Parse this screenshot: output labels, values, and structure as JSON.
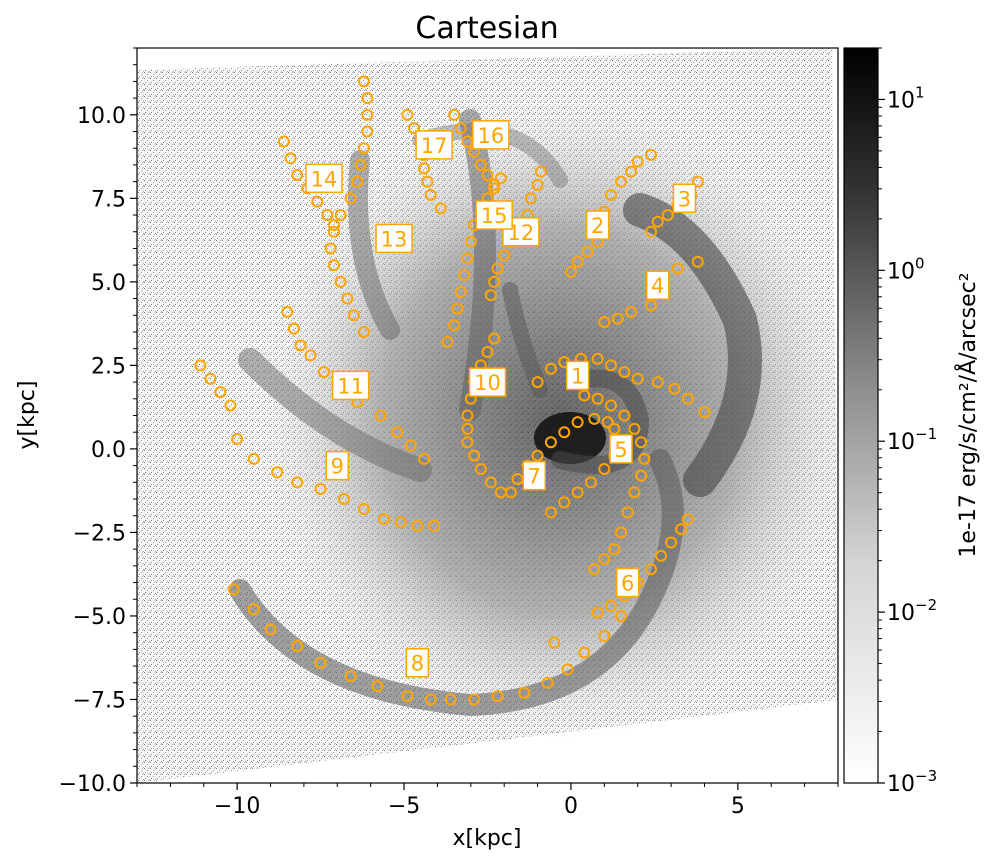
{
  "chart_data": {
    "type": "scatter",
    "title": "Cartesian",
    "xlabel": "x[kpc]",
    "ylabel": "y[kpc]",
    "xlim": [
      -13,
      8
    ],
    "ylim": [
      -10,
      12
    ],
    "xticks": [
      -10,
      -5,
      0,
      5
    ],
    "xtick_labels": [
      "−10",
      "−5",
      "0",
      "5"
    ],
    "yticks": [
      -10,
      -7.5,
      -5,
      -2.5,
      0,
      2.5,
      5,
      7.5,
      10
    ],
    "ytick_labels": [
      "−10.0",
      "−7.5",
      "−5.0",
      "−2.5",
      "0.0",
      "2.5",
      "5.0",
      "7.5",
      "10.0"
    ],
    "background": "grayscale galaxy image (log-scaled emission map)",
    "marker_color": "#FFA500",
    "colorbar": {
      "label": "1e-17 erg/s/cm²/Å/arcsec²",
      "scale": "log",
      "range": [
        0.001,
        20
      ],
      "cmap": "white-to-black",
      "ticks": [
        {
          "value": 0.001,
          "base": "10",
          "exp": "−3"
        },
        {
          "value": 0.01,
          "base": "10",
          "exp": "−2"
        },
        {
          "value": 0.1,
          "base": "10",
          "exp": "−1"
        },
        {
          "value": 1,
          "base": "10",
          "exp": "0"
        },
        {
          "value": 10,
          "base": "10",
          "exp": "1"
        }
      ]
    },
    "series": [
      {
        "id": "1",
        "label_pos": [
          0.2,
          2.2
        ],
        "points": [
          [
            -1.0,
            2.0
          ],
          [
            -0.6,
            2.4
          ],
          [
            -0.2,
            2.6
          ],
          [
            0.3,
            2.7
          ],
          [
            0.8,
            2.7
          ],
          [
            1.2,
            2.5
          ],
          [
            1.6,
            2.3
          ],
          [
            2.0,
            2.1
          ],
          [
            2.6,
            2.0
          ],
          [
            3.1,
            1.8
          ],
          [
            3.5,
            1.5
          ],
          [
            4.0,
            1.1
          ]
        ]
      },
      {
        "id": "2",
        "label_pos": [
          0.8,
          6.7
        ],
        "points": [
          [
            0.0,
            5.3
          ],
          [
            0.2,
            5.6
          ],
          [
            0.5,
            5.9
          ],
          [
            0.8,
            6.2
          ],
          [
            0.9,
            6.7
          ],
          [
            1.0,
            7.1
          ],
          [
            1.2,
            7.6
          ],
          [
            1.5,
            8.0
          ],
          [
            1.8,
            8.3
          ],
          [
            2.0,
            8.6
          ],
          [
            2.4,
            8.8
          ]
        ]
      },
      {
        "id": "3",
        "label_pos": [
          3.4,
          7.5
        ],
        "points": [
          [
            2.4,
            6.5
          ],
          [
            2.6,
            6.8
          ],
          [
            2.9,
            7.0
          ],
          [
            3.2,
            7.3
          ],
          [
            3.6,
            7.6
          ],
          [
            3.8,
            8.0
          ]
        ]
      },
      {
        "id": "4",
        "label_pos": [
          2.6,
          4.9
        ],
        "points": [
          [
            1.0,
            3.8
          ],
          [
            1.4,
            3.9
          ],
          [
            1.8,
            4.1
          ],
          [
            2.4,
            4.3
          ],
          [
            2.7,
            4.7
          ],
          [
            3.2,
            5.4
          ],
          [
            3.8,
            5.6
          ]
        ]
      },
      {
        "id": "5",
        "label_pos": [
          1.5,
          0.0
        ],
        "points": [
          [
            0.4,
            1.6
          ],
          [
            0.8,
            1.5
          ],
          [
            1.2,
            1.3
          ],
          [
            1.6,
            1.0
          ],
          [
            1.9,
            0.6
          ],
          [
            2.1,
            0.2
          ],
          [
            2.2,
            -0.3
          ],
          [
            2.1,
            -0.8
          ],
          [
            1.9,
            -1.3
          ],
          [
            1.7,
            -1.9
          ],
          [
            1.5,
            -2.5
          ],
          [
            1.3,
            -3.0
          ],
          [
            1.0,
            -3.3
          ],
          [
            0.7,
            -3.6
          ]
        ]
      },
      {
        "id": "6",
        "label_pos": [
          1.7,
          -4.0
        ],
        "points": [
          [
            0.8,
            -4.9
          ],
          [
            1.2,
            -4.7
          ],
          [
            1.6,
            -4.4
          ],
          [
            2.0,
            -4.0
          ],
          [
            2.4,
            -3.6
          ],
          [
            2.7,
            -3.2
          ],
          [
            3.0,
            -2.8
          ],
          [
            3.3,
            -2.4
          ],
          [
            3.5,
            -2.1
          ]
        ]
      },
      {
        "id": "7",
        "label_pos": [
          -1.1,
          -0.8
        ],
        "points": [
          [
            -1.8,
            -1.3
          ],
          [
            -1.6,
            -0.9
          ],
          [
            -1.3,
            -0.5
          ],
          [
            -1.0,
            -0.2
          ],
          [
            -0.6,
            0.2
          ],
          [
            -0.2,
            0.5
          ],
          [
            0.2,
            0.8
          ],
          [
            0.7,
            0.9
          ],
          [
            1.1,
            0.8
          ],
          [
            1.3,
            0.6
          ],
          [
            1.4,
            0.2
          ],
          [
            1.3,
            -0.2
          ],
          [
            1.0,
            -0.6
          ],
          [
            0.6,
            -1.0
          ],
          [
            0.2,
            -1.3
          ],
          [
            -0.2,
            -1.6
          ],
          [
            -0.6,
            -1.9
          ]
        ]
      },
      {
        "id": "8",
        "label_pos": [
          -4.6,
          -6.4
        ],
        "points": [
          [
            -10.1,
            -4.2
          ],
          [
            -9.5,
            -4.8
          ],
          [
            -9.0,
            -5.4
          ],
          [
            -8.2,
            -5.9
          ],
          [
            -7.5,
            -6.4
          ],
          [
            -6.6,
            -6.8
          ],
          [
            -5.8,
            -7.1
          ],
          [
            -4.9,
            -7.4
          ],
          [
            -4.2,
            -7.5
          ],
          [
            -3.6,
            -7.5
          ],
          [
            -2.9,
            -7.5
          ],
          [
            -2.2,
            -7.4
          ],
          [
            -1.4,
            -7.3
          ],
          [
            -0.7,
            -7.0
          ],
          [
            -0.1,
            -6.6
          ],
          [
            0.4,
            -6.1
          ],
          [
            1.0,
            -5.6
          ],
          [
            1.5,
            -5.0
          ],
          [
            -0.5,
            -5.8
          ]
        ]
      },
      {
        "id": "9",
        "label_pos": [
          -7.0,
          -0.5
        ],
        "points": [
          [
            -11.1,
            2.5
          ],
          [
            -10.8,
            2.1
          ],
          [
            -10.5,
            1.7
          ],
          [
            -10.2,
            1.3
          ],
          [
            -10.0,
            0.3
          ],
          [
            -9.5,
            -0.3
          ],
          [
            -8.8,
            -0.7
          ],
          [
            -8.2,
            -1.0
          ],
          [
            -7.5,
            -1.2
          ],
          [
            -6.8,
            -1.5
          ],
          [
            -6.2,
            -1.8
          ],
          [
            -5.6,
            -2.1
          ],
          [
            -5.1,
            -2.2
          ],
          [
            -4.6,
            -2.3
          ],
          [
            -4.1,
            -2.3
          ]
        ]
      },
      {
        "id": "10",
        "label_pos": [
          -2.5,
          2.0
        ],
        "points": [
          [
            -3.1,
            1.0
          ],
          [
            -3.0,
            1.5
          ],
          [
            -2.9,
            2.0
          ],
          [
            -2.7,
            2.5
          ],
          [
            -2.5,
            2.9
          ],
          [
            -2.3,
            3.3
          ],
          [
            -3.1,
            0.6
          ],
          [
            -3.1,
            0.2
          ],
          [
            -2.9,
            -0.2
          ],
          [
            -2.7,
            -0.6
          ],
          [
            -2.4,
            -1.0
          ],
          [
            -2.1,
            -1.3
          ]
        ]
      },
      {
        "id": "11",
        "label_pos": [
          -6.6,
          1.9
        ],
        "points": [
          [
            -8.5,
            4.1
          ],
          [
            -8.3,
            3.6
          ],
          [
            -8.1,
            3.1
          ],
          [
            -7.8,
            2.8
          ],
          [
            -7.4,
            2.3
          ],
          [
            -7.0,
            1.9
          ],
          [
            -6.4,
            1.4
          ],
          [
            -5.7,
            1.0
          ],
          [
            -5.2,
            0.5
          ],
          [
            -4.8,
            0.1
          ],
          [
            -4.4,
            -0.3
          ]
        ]
      },
      {
        "id": "12",
        "label_pos": [
          -1.5,
          6.5
        ],
        "points": [
          [
            -2.4,
            4.6
          ],
          [
            -2.3,
            5.0
          ],
          [
            -2.2,
            5.4
          ],
          [
            -2.0,
            5.8
          ],
          [
            -1.8,
            6.2
          ],
          [
            -1.5,
            6.6
          ],
          [
            -1.3,
            7.0
          ],
          [
            -1.2,
            7.5
          ],
          [
            -1.0,
            7.9
          ],
          [
            -0.9,
            8.3
          ]
        ]
      },
      {
        "id": "13",
        "label_pos": [
          -5.3,
          6.3
        ],
        "points": [
          [
            -6.2,
            3.5
          ],
          [
            -6.5,
            4.0
          ],
          [
            -6.7,
            4.5
          ],
          [
            -6.9,
            5.0
          ],
          [
            -7.1,
            5.5
          ],
          [
            -7.2,
            6.0
          ],
          [
            -7.1,
            6.5
          ],
          [
            -6.9,
            7.0
          ],
          [
            -6.6,
            7.5
          ],
          [
            -6.4,
            8.0
          ],
          [
            -6.3,
            8.5
          ],
          [
            -6.2,
            9.0
          ],
          [
            -6.1,
            9.5
          ],
          [
            -6.1,
            10.0
          ],
          [
            -6.1,
            10.5
          ],
          [
            -6.2,
            11.0
          ]
        ]
      },
      {
        "id": "14",
        "label_pos": [
          -7.4,
          8.1
        ],
        "points": [
          [
            -8.6,
            9.2
          ],
          [
            -8.4,
            8.7
          ],
          [
            -8.2,
            8.2
          ],
          [
            -7.9,
            7.8
          ],
          [
            -7.6,
            7.4
          ],
          [
            -7.3,
            7.0
          ],
          [
            -7.1,
            6.7
          ]
        ]
      },
      {
        "id": "15",
        "label_pos": [
          -2.3,
          7.0
        ],
        "points": [
          [
            -3.7,
            3.2
          ],
          [
            -3.5,
            3.7
          ],
          [
            -3.4,
            4.2
          ],
          [
            -3.3,
            4.7
          ],
          [
            -3.2,
            5.2
          ],
          [
            -3.1,
            5.7
          ],
          [
            -3.0,
            6.2
          ],
          [
            -2.9,
            6.7
          ],
          [
            -2.7,
            7.1
          ],
          [
            -2.5,
            7.5
          ],
          [
            -2.3,
            7.8
          ],
          [
            -2.1,
            8.1
          ]
        ]
      },
      {
        "id": "16",
        "label_pos": [
          -2.4,
          9.4
        ],
        "points": [
          [
            -3.5,
            10.0
          ],
          [
            -3.3,
            9.6
          ],
          [
            -3.1,
            9.2
          ],
          [
            -2.9,
            8.9
          ],
          [
            -2.7,
            8.5
          ],
          [
            -2.5,
            8.2
          ],
          [
            -2.3,
            7.9
          ]
        ]
      },
      {
        "id": "17",
        "label_pos": [
          -4.1,
          9.1
        ],
        "points": [
          [
            -4.9,
            10.0
          ],
          [
            -4.7,
            9.6
          ],
          [
            -4.5,
            9.2
          ],
          [
            -4.4,
            8.8
          ],
          [
            -4.4,
            8.4
          ],
          [
            -4.3,
            8.0
          ],
          [
            -4.2,
            7.6
          ],
          [
            -3.9,
            7.2
          ]
        ]
      }
    ]
  }
}
